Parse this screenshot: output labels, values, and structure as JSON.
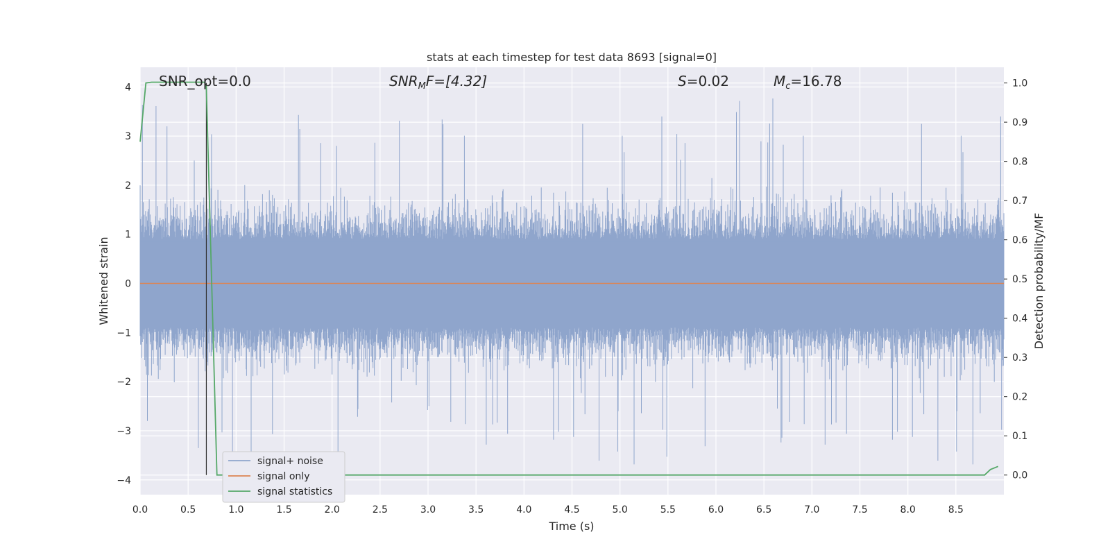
{
  "chart_data": {
    "type": "line",
    "title": "stats at each timestep for test data 8693 [signal=0]",
    "xlabel": "Time (s)",
    "ylabel": "Whitened strain",
    "ylabel_right": "Detection probability/MF",
    "xlim": [
      0.0,
      9.0
    ],
    "ylim": [
      -4.3,
      4.4
    ],
    "ylim_right": [
      -0.05,
      1.04
    ],
    "x_ticks": [
      "0.0",
      "0.5",
      "1.0",
      "1.5",
      "2.0",
      "2.5",
      "3.0",
      "3.5",
      "4.0",
      "4.5",
      "5.0",
      "5.5",
      "6.0",
      "6.5",
      "7.0",
      "7.5",
      "8.0",
      "8.5"
    ],
    "y_ticks": [
      "−4",
      "−3",
      "−2",
      "−1",
      "0",
      "1",
      "2",
      "3",
      "4"
    ],
    "y_ticks_right": [
      "0.0",
      "0.1",
      "0.2",
      "0.3",
      "0.4",
      "0.5",
      "0.6",
      "0.7",
      "0.8",
      "0.9",
      "1.0"
    ],
    "grid": true,
    "legend_position": "lower-left",
    "annotations": {
      "snr_opt": "SNR_opt=0.0",
      "snr_mf_sym": "SNR",
      "snr_mf_sub": "M",
      "snr_mf_rest": "F=[4.32]",
      "s_sym": "S",
      "s_rest": "=0.02",
      "mc_sym": "M",
      "mc_sub": "c",
      "mc_rest": "=16.78"
    },
    "marker_line_x": 0.69,
    "series": [
      {
        "name": "signal+ noise",
        "color": "#8fa5cc",
        "noise_envelope": {
          "typical_max": 2.0,
          "peak_max": 4.0,
          "typical_min": -2.0,
          "peak_min": -3.8
        }
      },
      {
        "name": "signal only",
        "color": "#dd8452",
        "values": 0.0
      },
      {
        "name": "signal statistics",
        "color": "#55a868",
        "axis": "right",
        "points": [
          [
            0.0,
            0.85
          ],
          [
            0.06,
            1.0
          ],
          [
            0.12,
            1.002
          ],
          [
            0.2,
            1.002
          ],
          [
            0.67,
            1.002
          ],
          [
            0.69,
            0.99
          ],
          [
            0.8,
            0.0
          ],
          [
            8.8,
            0.0
          ],
          [
            8.86,
            0.014
          ],
          [
            8.94,
            0.022
          ]
        ]
      }
    ],
    "legend": [
      "signal+ noise",
      "signal only",
      "signal statistics"
    ]
  },
  "colors": {
    "background": "#ffffff",
    "plot_bg": "#eaeaf2",
    "grid": "#ffffff",
    "noise": "#8fa5cc",
    "signal": "#dd8452",
    "stats": "#55a868",
    "marker": "#333333"
  }
}
